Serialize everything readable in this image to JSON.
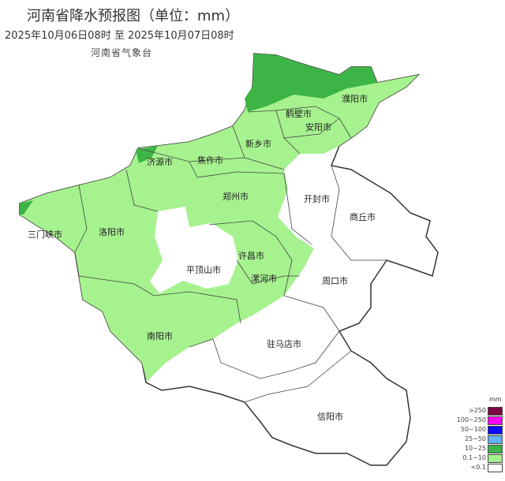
{
  "header": {
    "title": "河南省降水预报图（单位：mm）",
    "period": "2025年10月06日08时  至  2025年10月07日08时",
    "issuer": "河南省气象台"
  },
  "cities": [
    "濮阳市",
    "鹤壁市",
    "安阳市",
    "新乡市",
    "济源市",
    "焦作市",
    "郑州市",
    "开封市",
    "商丘市",
    "三门峡市",
    "洛阳市",
    "许昌市",
    "平顶山市",
    "漯河市",
    "周口市",
    "南阳市",
    "驻马店市",
    "信阳市"
  ],
  "legend": {
    "unit": "mm",
    "items": [
      {
        "label": ">250",
        "color": "#7b0a45"
      },
      {
        "label": "100~250",
        "color": "#ff00ff"
      },
      {
        "label": "50~100",
        "color": "#0a0aff"
      },
      {
        "label": "25~50",
        "color": "#62b3f7"
      },
      {
        "label": "10~25",
        "color": "#3cb446"
      },
      {
        "label": "0.1~10",
        "color": "#a6f28f"
      },
      {
        "label": "<0.1",
        "color": "#ffffff"
      }
    ]
  }
}
